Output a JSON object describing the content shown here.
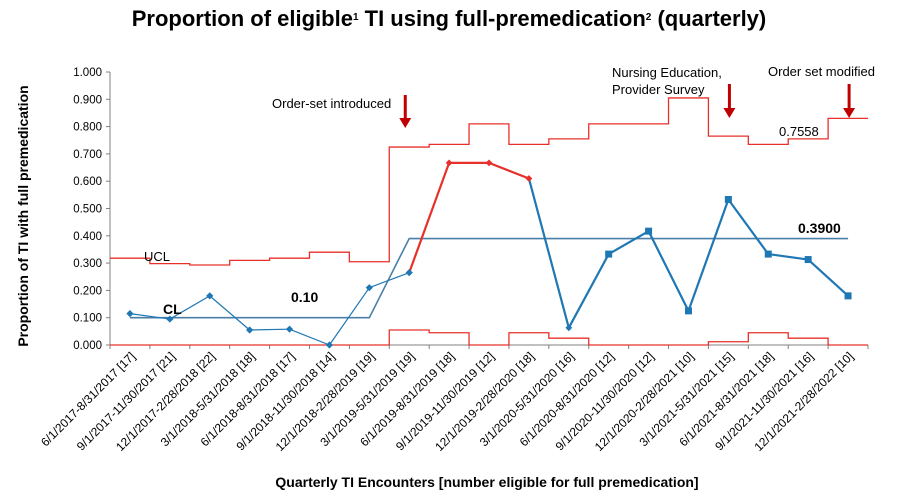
{
  "title_parts": {
    "a": "Proportion of eligible",
    "sup1": "1",
    "b": " TI using full-premedication",
    "sup2": "2",
    "c": " (quarterly)"
  },
  "chart_data": {
    "type": "line",
    "ylabel": "Proportion of TI with full premedication",
    "xlabel": "Quarterly  TI Encounters [number eligible  for full premedication]",
    "ylim": [
      0,
      1.0
    ],
    "yticks": [
      "0.000",
      "0.100",
      "0.200",
      "0.300",
      "0.400",
      "0.500",
      "0.600",
      "0.700",
      "0.800",
      "0.900",
      "1.000"
    ],
    "categories": [
      "6/1/2017-8/31/2017 [17]",
      "9/1/2017-11/30/2017 [21]",
      "12/1/2017-2/28/2018 [22]",
      "3/1/2018-5/31/2018 [18]",
      "6/1/2018-8/31/2018 [17]",
      "9/1/2018-11/30/2018 [14]",
      "12/1/2018-2/28/2019 [19]",
      "3/1/2019-5/31/2019 [19]",
      "6/1/2019-8/31/2019 [18]",
      "9/1/2019-11/30/2019 [12]",
      "12/1/2019-2/28/2020 [18]",
      "3/1/2020-5/31/2020 [16]",
      "6/1/2020-8/31/2020 [12]",
      "9/1/2020-11/30/2020 [12]",
      "12/1/2020-2/28/2021 [10]",
      "3/1/2021-5/31/2021 [15]",
      "6/1/2021-8/31/2021 [18]",
      "9/1/2021-11/30/2021 [16]",
      "12/1/2021-2/28/2022 [10]"
    ],
    "series": [
      {
        "values": [
          0.115,
          0.095,
          0.18,
          0.055,
          0.058,
          0.0,
          0.21,
          0.265,
          0.667,
          0.667,
          0.61,
          0.063,
          0.333,
          0.417,
          0.125,
          0.533,
          0.333,
          0.313,
          0.18
        ]
      }
    ],
    "centerline": {
      "label": "CL",
      "phase1": 0.1,
      "phase2": 0.39,
      "phase1_label": "0.10",
      "phase2_label": "0.3900"
    },
    "ucl": {
      "label": "UCL",
      "values": [
        0.318,
        0.298,
        0.293,
        0.31,
        0.318,
        0.34,
        0.305,
        0.725,
        0.735,
        0.81,
        0.735,
        0.755,
        0.81,
        0.81,
        0.905,
        0.765,
        0.735,
        0.755,
        0.83
      ]
    },
    "lcl": {
      "values": [
        0,
        0,
        0,
        0,
        0,
        0,
        0,
        0.055,
        0.045,
        0,
        0.045,
        0.025,
        0,
        0,
        0,
        0.012,
        0.045,
        0.025,
        0
      ]
    },
    "ucl_value_label": "0.7558",
    "annotations": [
      {
        "text": "Order-set introduced",
        "index": 7
      },
      {
        "text": "Nursing Education,",
        "text2": "Provider Survey",
        "index": 15
      },
      {
        "text": "Order set modified",
        "index": 18
      }
    ],
    "colors": {
      "data": "#1f77b4",
      "control": "#e8302a",
      "special_cause": "#e8302a",
      "centerline": "#4a7fa8",
      "arrow": "#c00000"
    },
    "special_cause_indices": [
      8,
      9,
      10
    ]
  }
}
